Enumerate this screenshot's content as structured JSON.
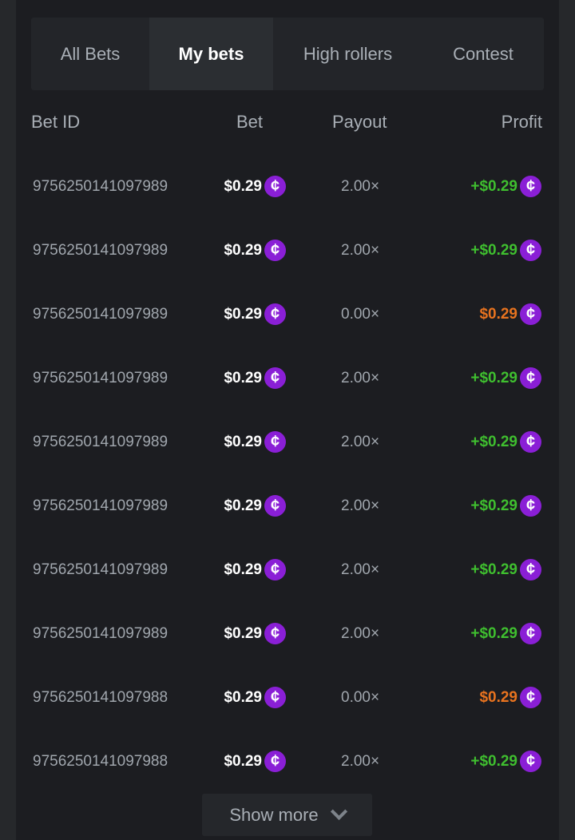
{
  "tabs": [
    {
      "label": "All Bets"
    },
    {
      "label": "My bets",
      "active": true
    },
    {
      "label": "High rollers"
    },
    {
      "label": "Contest"
    }
  ],
  "columns": {
    "bet_id": "Bet ID",
    "bet": "Bet",
    "payout": "Payout",
    "profit": "Profit"
  },
  "currency_icon": "cent-coin-icon",
  "colors": {
    "win": "#3fbf2f",
    "loss": "#e8731f",
    "coin": "#8a1fd6"
  },
  "rows": [
    {
      "id": "9756250141097989",
      "bet": "$0.29",
      "payout": "2.00×",
      "profit": "+$0.29",
      "result": "win"
    },
    {
      "id": "9756250141097989",
      "bet": "$0.29",
      "payout": "2.00×",
      "profit": "+$0.29",
      "result": "win"
    },
    {
      "id": "9756250141097989",
      "bet": "$0.29",
      "payout": "0.00×",
      "profit": "$0.29",
      "result": "loss"
    },
    {
      "id": "9756250141097989",
      "bet": "$0.29",
      "payout": "2.00×",
      "profit": "+$0.29",
      "result": "win"
    },
    {
      "id": "9756250141097989",
      "bet": "$0.29",
      "payout": "2.00×",
      "profit": "+$0.29",
      "result": "win"
    },
    {
      "id": "9756250141097989",
      "bet": "$0.29",
      "payout": "2.00×",
      "profit": "+$0.29",
      "result": "win"
    },
    {
      "id": "9756250141097989",
      "bet": "$0.29",
      "payout": "2.00×",
      "profit": "+$0.29",
      "result": "win"
    },
    {
      "id": "9756250141097989",
      "bet": "$0.29",
      "payout": "2.00×",
      "profit": "+$0.29",
      "result": "win"
    },
    {
      "id": "9756250141097988",
      "bet": "$0.29",
      "payout": "0.00×",
      "profit": "$0.29",
      "result": "loss"
    },
    {
      "id": "9756250141097988",
      "bet": "$0.29",
      "payout": "2.00×",
      "profit": "+$0.29",
      "result": "win"
    }
  ],
  "show_more": "Show more"
}
